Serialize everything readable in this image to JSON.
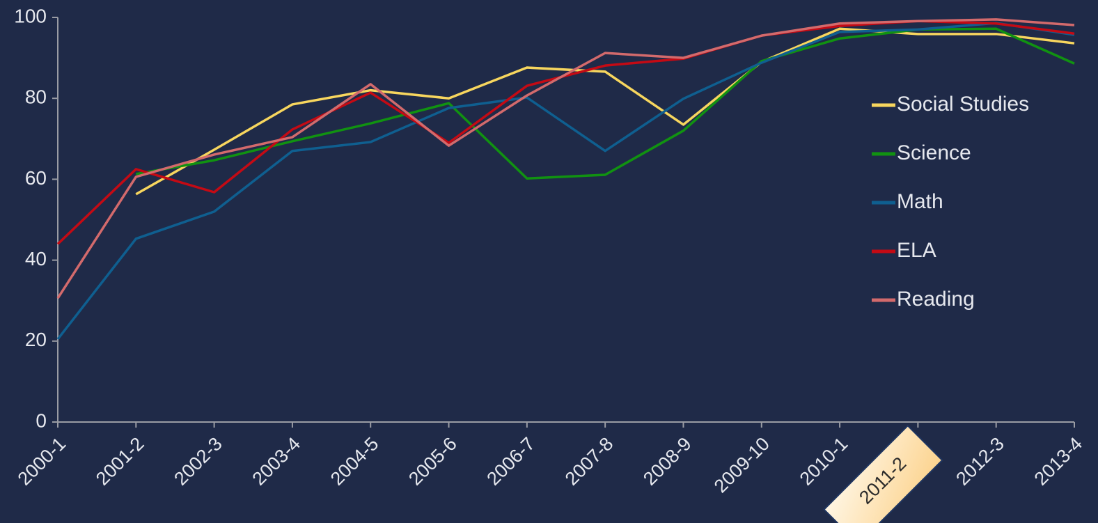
{
  "chart_data": {
    "type": "line",
    "categories": [
      "2000-1",
      "2001-2",
      "2002-3",
      "2003-4",
      "2004-5",
      "2005-6",
      "2006-7",
      "2007-8",
      "2008-9",
      "2009-10",
      "2010-1",
      "2011-2",
      "2012-3",
      "2013-4"
    ],
    "highlighted_category": 11,
    "series": [
      {
        "name": "Social Studies",
        "color": "#f7d65e",
        "values": [
          null,
          56.3,
          67.3,
          78.5,
          82,
          80,
          87.6,
          86.6,
          73.5,
          89,
          97.2,
          95.9,
          95.9,
          93.6
        ]
      },
      {
        "name": "Science",
        "color": "#119211",
        "values": [
          null,
          61.3,
          64.7,
          69.4,
          73.8,
          78.8,
          60.2,
          61.1,
          72,
          89.2,
          94.8,
          97,
          97.2,
          88.6
        ]
      },
      {
        "name": "Math",
        "color": "#0f5f90",
        "values": [
          20.5,
          45.3,
          52,
          67,
          69.2,
          77.6,
          80.2,
          67,
          79.9,
          88.8,
          96.4,
          97,
          98.6,
          95.7
        ]
      },
      {
        "name": "ELA",
        "color": "#c40a14",
        "values": [
          44,
          62.5,
          56.8,
          72.3,
          81.4,
          69,
          83.1,
          88.1,
          89.8,
          95.5,
          97.9,
          99.1,
          98.5,
          96
        ]
      },
      {
        "name": "Reading",
        "color": "#d36a6c",
        "values": [
          30.6,
          60.6,
          66.1,
          70.4,
          83.5,
          68.3,
          80.7,
          91.2,
          90,
          95.5,
          98.5,
          99.1,
          99.5,
          98.1
        ]
      }
    ],
    "ylim": [
      0,
      100
    ],
    "yticks": [
      0,
      20,
      40,
      60,
      80,
      100
    ],
    "grid": false,
    "legend": "right"
  }
}
